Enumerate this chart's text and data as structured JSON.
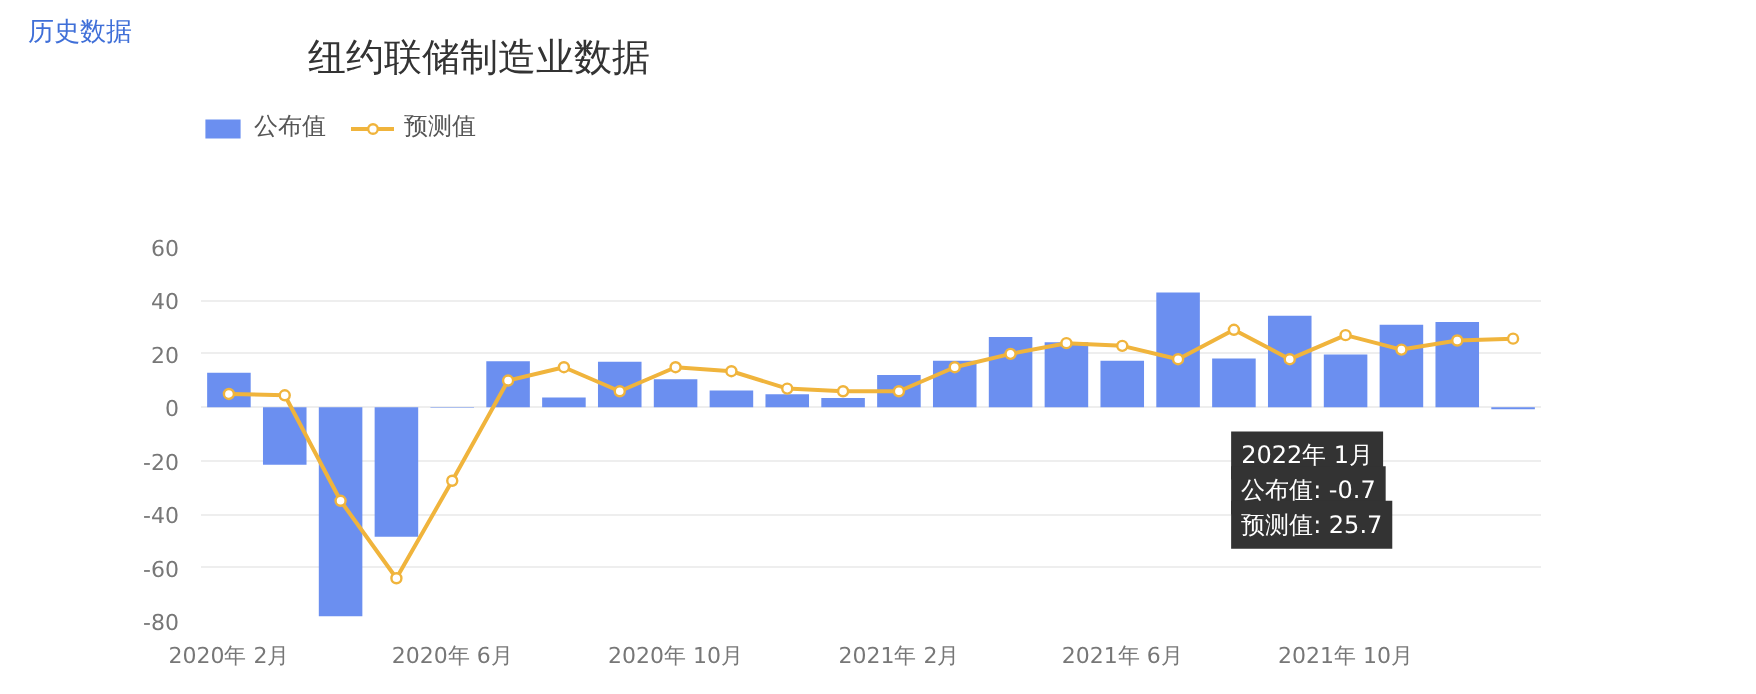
{
  "chart_data": {
    "type": "bar",
    "title": "纽约联储制造业数据",
    "categories": [
      "2020年 2月",
      null,
      null,
      null,
      "2020年 6月",
      null,
      null,
      null,
      "2020年 10月",
      null,
      null,
      null,
      "2021年 2月",
      null,
      null,
      null,
      "2021年 6月",
      null,
      null,
      null,
      "2021年 10月",
      null,
      null,
      null
    ],
    "series": [
      {
        "name": "公布值",
        "color": "#6b8ff0",
        "values": [
          12.9,
          -21.5,
          -78.2,
          -48.5,
          -0.2,
          17.2,
          3.7,
          17.0,
          10.5,
          6.3,
          4.9,
          3.5,
          12.1,
          17.4,
          26.3,
          24.3,
          17.4,
          43.0,
          18.3,
          34.3,
          19.8,
          30.9,
          31.9,
          -0.7
        ]
      },
      {
        "name": "预测值",
        "type": "line",
        "color": "#f0b43c",
        "marker": "circle",
        "values": [
          5.0,
          4.5,
          -35.0,
          -64.0,
          -27.5,
          10.0,
          15.0,
          6.0,
          15.0,
          13.5,
          7.0,
          6.0,
          6.0,
          15.0,
          20.0,
          24.0,
          23.0,
          18.0,
          29.0,
          18.0,
          27.0,
          21.6,
          25.0,
          25.7
        ]
      }
    ],
    "ylim": [
      -80,
      60
    ],
    "yticks": [
      -80,
      -60,
      -40,
      -20,
      0,
      20,
      40,
      60
    ],
    "grid": "y",
    "legend": "top left",
    "annotations": [
      "历史数据",
      "2022年 1月",
      "公布值: -0.7",
      "预测值: 25.7"
    ]
  }
}
